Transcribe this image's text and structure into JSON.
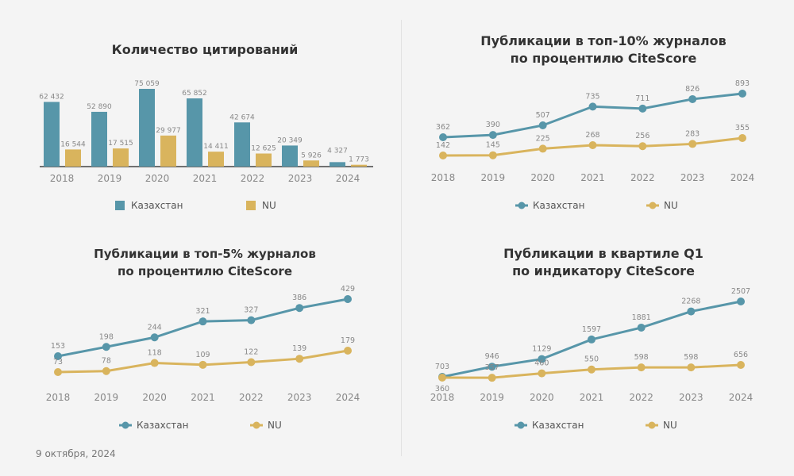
{
  "colors": {
    "kz": "#5796a9",
    "nu": "#d9b45d"
  },
  "date": "9 октября, 2024",
  "chart_data": [
    {
      "type": "bar",
      "title": "Количество цитирований",
      "categories": [
        "2018",
        "2019",
        "2020",
        "2021",
        "2022",
        "2023",
        "2024"
      ],
      "series": [
        {
          "name": "Казахстан",
          "values": [
            62432,
            52890,
            75059,
            65852,
            42674,
            20349,
            4327
          ],
          "labels": [
            "62 432",
            "52 890",
            "75 059",
            "65 852",
            "42 674",
            "20 349",
            "4 327"
          ]
        },
        {
          "name": "NU",
          "values": [
            16544,
            17515,
            29977,
            14411,
            12625,
            5926,
            1773
          ],
          "labels": [
            "16 544",
            "17 515",
            "29 977",
            "14 411",
            "12 625",
            "5 926",
            "1 773"
          ]
        }
      ]
    },
    {
      "type": "line",
      "title": "Публикации в топ-10% журналов по процентилю CiteScore",
      "title_lines": [
        "Публикации в топ-10% журналов",
        "по процентилю CiteScore"
      ],
      "categories": [
        "2018",
        "2019",
        "2020",
        "2021",
        "2022",
        "2023",
        "2024"
      ],
      "series": [
        {
          "name": "Казахстан",
          "values": [
            362,
            390,
            507,
            735,
            711,
            826,
            893
          ]
        },
        {
          "name": "NU",
          "values": [
            142,
            145,
            225,
            268,
            256,
            283,
            355
          ]
        }
      ]
    },
    {
      "type": "line",
      "title": "Публикации в топ-5% журналов по процентилю CiteScore",
      "title_lines": [
        "Публикации в топ-5% журналов",
        "по процентилю CiteScore"
      ],
      "categories": [
        "2018",
        "2019",
        "2020",
        "2021",
        "2022",
        "2023",
        "2024"
      ],
      "series": [
        {
          "name": "Казахстан",
          "values": [
            153,
            198,
            244,
            321,
            327,
            386,
            429
          ]
        },
        {
          "name": "NU",
          "values": [
            73,
            78,
            118,
            109,
            122,
            139,
            179
          ]
        }
      ]
    },
    {
      "type": "line",
      "title": "Публикации в квартиле Q1 по индикатору CiteScore",
      "title_lines": [
        "Публикации в квартиле Q1",
        "по индикатору CiteScore"
      ],
      "categories": [
        "2018",
        "2019",
        "2020",
        "2021",
        "2022",
        "2023",
        "2024"
      ],
      "series": [
        {
          "name": "Казахстан",
          "values": [
            703,
            946,
            1129,
            1597,
            1881,
            2268,
            2507
          ]
        },
        {
          "name": "NU",
          "values": [
            360,
            357,
            460,
            550,
            598,
            598,
            656
          ]
        }
      ]
    }
  ]
}
